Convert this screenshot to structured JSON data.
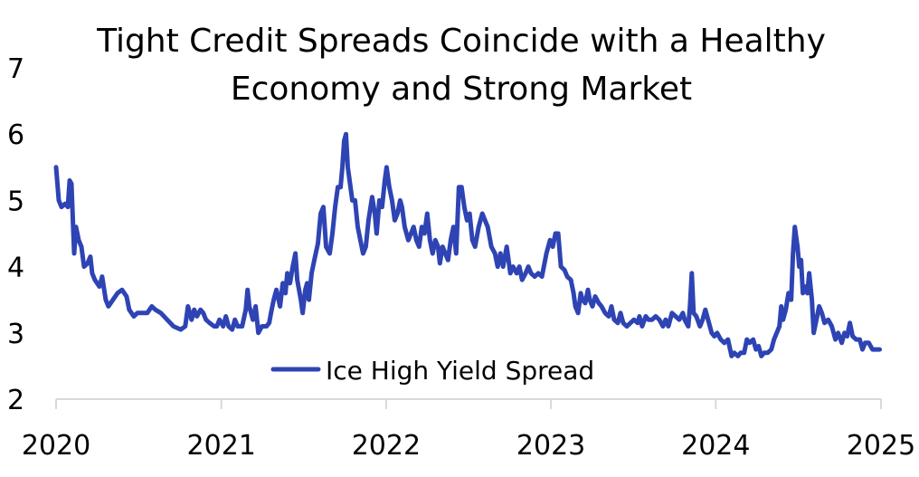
{
  "chart_data": {
    "type": "line",
    "title": [
      "Tight Credit Spreads Coincide with a Healthy",
      "Economy and Strong Market"
    ],
    "xlabel": "",
    "ylabel": "",
    "x_unit": "days since 2020-01-01",
    "xlim": [
      0,
      1827
    ],
    "ylim": [
      2,
      7
    ],
    "y_ticks": [
      "2",
      "3",
      "4",
      "5",
      "6",
      "7"
    ],
    "x_ticks": [
      {
        "label": "2020",
        "day": 0
      },
      {
        "label": "2021",
        "day": 366
      },
      {
        "label": "2022",
        "day": 731
      },
      {
        "label": "2023",
        "day": 1096
      },
      {
        "label": "2024",
        "day": 1461
      },
      {
        "label": "2025",
        "day": 1827
      }
    ],
    "grid": false,
    "legend_position": "bottom-center-inside",
    "series": [
      {
        "name": "Ice High Yield Spread",
        "color": "#2e44b4",
        "x": [
          0,
          6,
          12,
          20,
          26,
          30,
          34,
          40,
          44,
          50,
          56,
          62,
          70,
          76,
          80,
          86,
          96,
          102,
          110,
          116,
          126,
          136,
          146,
          156,
          162,
          172,
          180,
          192,
          202,
          212,
          220,
          232,
          246,
          260,
          276,
          286,
          292,
          300,
          306,
          312,
          320,
          326,
          332,
          340,
          350,
          356,
          362,
          370,
          376,
          382,
          390,
          396,
          402,
          412,
          420,
          424,
          428,
          436,
          442,
          448,
          456,
          466,
          472,
          476,
          482,
          488,
          496,
          502,
          508,
          512,
          518,
          524,
          530,
          534,
          542,
          546,
          552,
          556,
          560,
          566,
          572,
          580,
          586,
          592,
          598,
          606,
          612,
          618,
          624,
          630,
          634,
          638,
          642,
          646,
          650,
          656,
          662,
          668,
          674,
          680,
          686,
          692,
          700,
          706,
          710,
          716,
          722,
          728,
          732,
          738,
          744,
          750,
          756,
          762,
          766,
          772,
          780,
          786,
          792,
          798,
          804,
          810,
          816,
          822,
          828,
          834,
          840,
          846,
          850,
          856,
          862,
          868,
          874,
          880,
          886,
          892,
          898,
          904,
          910,
          916,
          922,
          928,
          936,
          944,
          950,
          956,
          964,
          972,
          978,
          984,
          990,
          998,
          1006,
          1012,
          1020,
          1026,
          1032,
          1040,
          1046,
          1052,
          1060,
          1068,
          1076,
          1086,
          1094,
          1100,
          1106,
          1112,
          1118,
          1126,
          1132,
          1140,
          1146,
          1150,
          1156,
          1162,
          1166,
          1172,
          1178,
          1182,
          1188,
          1194,
          1202,
          1208,
          1216,
          1224,
          1230,
          1236,
          1244,
          1250,
          1256,
          1264,
          1272,
          1280,
          1288,
          1292,
          1298,
          1306,
          1312,
          1320,
          1328,
          1336,
          1344,
          1350,
          1356,
          1364,
          1372,
          1380,
          1388,
          1392,
          1400,
          1404,
          1408,
          1412,
          1418,
          1426,
          1432,
          1438,
          1444,
          1452,
          1458,
          1464,
          1472,
          1480,
          1488,
          1496,
          1502,
          1510,
          1516,
          1524,
          1530,
          1536,
          1544,
          1550,
          1556,
          1562,
          1568,
          1576,
          1584,
          1590,
          1596,
          1602,
          1606,
          1610,
          1616,
          1622,
          1628,
          1632,
          1636,
          1642,
          1646,
          1650,
          1654,
          1660,
          1664,
          1668,
          1674,
          1678,
          1684,
          1690,
          1696,
          1702,
          1710,
          1718,
          1726,
          1732,
          1740,
          1746,
          1752,
          1758,
          1764,
          1772,
          1780,
          1786,
          1792,
          1800,
          1808,
          1816,
          1824
        ],
        "values": [
          5.5,
          5.0,
          4.9,
          4.95,
          4.9,
          5.3,
          5.25,
          4.2,
          4.6,
          4.4,
          4.3,
          4.0,
          4.05,
          4.15,
          3.9,
          3.8,
          3.7,
          3.85,
          3.5,
          3.4,
          3.5,
          3.6,
          3.65,
          3.55,
          3.35,
          3.25,
          3.3,
          3.3,
          3.3,
          3.4,
          3.35,
          3.3,
          3.2,
          3.1,
          3.05,
          3.1,
          3.4,
          3.2,
          3.35,
          3.25,
          3.35,
          3.3,
          3.2,
          3.15,
          3.1,
          3.1,
          3.2,
          3.1,
          3.25,
          3.1,
          3.05,
          3.2,
          3.1,
          3.1,
          3.35,
          3.65,
          3.4,
          3.2,
          3.4,
          3.0,
          3.1,
          3.1,
          3.15,
          3.3,
          3.5,
          3.65,
          3.4,
          3.75,
          3.6,
          3.9,
          3.75,
          4.0,
          4.2,
          3.8,
          3.5,
          3.3,
          3.65,
          3.75,
          3.5,
          3.9,
          4.1,
          4.35,
          4.8,
          4.9,
          4.3,
          4.2,
          4.5,
          4.9,
          5.2,
          5.2,
          5.5,
          5.9,
          6.0,
          5.5,
          5.3,
          5.0,
          5.0,
          4.6,
          4.4,
          4.2,
          4.3,
          4.7,
          5.05,
          4.8,
          4.5,
          5.0,
          4.9,
          5.3,
          5.5,
          5.2,
          5.0,
          4.7,
          4.8,
          5.0,
          4.9,
          4.6,
          4.4,
          4.5,
          4.6,
          4.4,
          4.3,
          4.6,
          4.5,
          4.8,
          4.4,
          4.2,
          4.4,
          4.3,
          4.05,
          4.3,
          4.2,
          4.1,
          4.4,
          4.6,
          4.2,
          5.2,
          5.2,
          4.9,
          4.7,
          4.8,
          4.4,
          4.3,
          4.6,
          4.8,
          4.7,
          4.6,
          4.3,
          4.2,
          4.0,
          4.2,
          4.0,
          4.3,
          3.9,
          4.0,
          3.9,
          4.0,
          3.8,
          3.9,
          4.0,
          3.9,
          3.85,
          3.9,
          3.85,
          4.2,
          4.4,
          4.3,
          4.5,
          4.5,
          4.0,
          3.95,
          3.85,
          3.8,
          3.6,
          3.4,
          3.3,
          3.6,
          3.5,
          3.45,
          3.65,
          3.5,
          3.4,
          3.55,
          3.45,
          3.4,
          3.3,
          3.25,
          3.4,
          3.2,
          3.15,
          3.3,
          3.15,
          3.1,
          3.15,
          3.2,
          3.15,
          3.25,
          3.1,
          3.25,
          3.2,
          3.2,
          3.25,
          3.2,
          3.1,
          3.2,
          3.1,
          3.3,
          3.25,
          3.2,
          3.3,
          3.2,
          3.1,
          3.4,
          3.9,
          3.3,
          3.25,
          3.1,
          3.2,
          3.35,
          3.2,
          3.0,
          2.95,
          3.0,
          2.9,
          2.85,
          2.9,
          2.65,
          2.7,
          2.65,
          2.7,
          2.7,
          2.9,
          2.85,
          2.9,
          2.75,
          2.8,
          2.65,
          2.7,
          2.7,
          2.75,
          2.9,
          3.0,
          3.1,
          3.4,
          3.2,
          3.35,
          3.6,
          3.5,
          4.2,
          4.6,
          4.3,
          4.0,
          4.1,
          3.6,
          3.7,
          3.6,
          3.9,
          3.5,
          3.0,
          3.2,
          3.4,
          3.3,
          3.15,
          3.2,
          3.1,
          2.9,
          3.0,
          2.85,
          3.0,
          2.95,
          3.15,
          2.95,
          2.9,
          2.9,
          2.75,
          2.85,
          2.85,
          2.75,
          2.75,
          2.75
        ]
      }
    ]
  }
}
